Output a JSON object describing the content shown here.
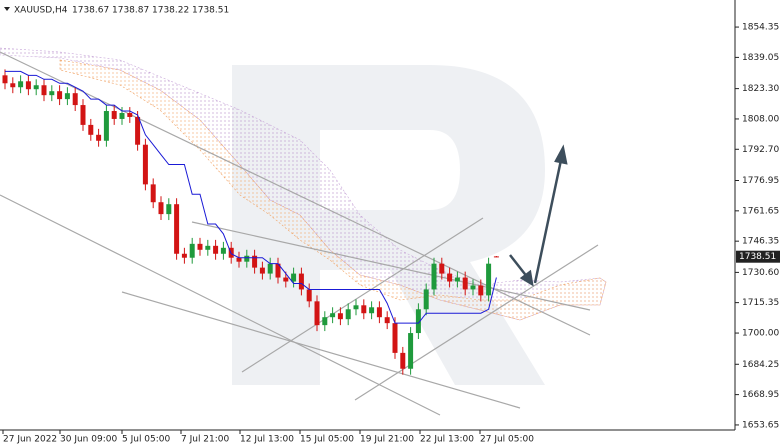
{
  "chart_data": {
    "type": "candlestick",
    "symbol": "XAUUSD,H4",
    "categories": [
      "27 Jun 2022",
      "30 Jun 09:00",
      "5 Jul 05:00",
      "7 Jul 21:00",
      "12 Jul 13:00",
      "15 Jul 05:00",
      "19 Jul 21:00",
      "22 Jul 13:00",
      "27 Jul 05:00"
    ],
    "open": [
      1830,
      1826,
      1824,
      1827,
      1823,
      1825,
      1820,
      1822,
      1818,
      1821,
      1815,
      1805,
      1800,
      1797,
      1812,
      1808,
      1811,
      1809,
      1795,
      1775,
      1766,
      1760,
      1765,
      1740,
      1738,
      1745,
      1742,
      1744,
      1740,
      1743,
      1738,
      1736,
      1739,
      1733,
      1730,
      1735,
      1728,
      1726,
      1730,
      1722,
      1716,
      1704,
      1708,
      1710,
      1707,
      1712,
      1714,
      1710,
      1713,
      1708,
      1705,
      1690,
      1682,
      1700,
      1712,
      1722,
      1735,
      1730,
      1726,
      1728,
      1722,
      1724,
      1719,
      1738.67
    ],
    "high": [
      1833,
      1829,
      1830,
      1830,
      1828,
      1828,
      1825,
      1825,
      1824,
      1824,
      1818,
      1808,
      1803,
      1815,
      1815,
      1814,
      1814,
      1812,
      1798,
      1778,
      1769,
      1768,
      1768,
      1743,
      1748,
      1748,
      1747,
      1747,
      1746,
      1746,
      1741,
      1742,
      1742,
      1736,
      1738,
      1738,
      1731,
      1733,
      1733,
      1725,
      1719,
      1711,
      1713,
      1713,
      1715,
      1717,
      1717,
      1716,
      1716,
      1711,
      1708,
      1693,
      1703,
      1715,
      1725,
      1738,
      1738,
      1733,
      1731,
      1731,
      1727,
      1727,
      1738,
      1738.87
    ],
    "low": [
      1823,
      1821,
      1821,
      1820,
      1820,
      1817,
      1817,
      1815,
      1815,
      1812,
      1802,
      1797,
      1794,
      1794,
      1805,
      1805,
      1806,
      1792,
      1772,
      1763,
      1757,
      1757,
      1737,
      1735,
      1735,
      1739,
      1739,
      1737,
      1737,
      1735,
      1733,
      1733,
      1730,
      1727,
      1727,
      1725,
      1723,
      1723,
      1719,
      1713,
      1701,
      1701,
      1705,
      1704,
      1704,
      1709,
      1707,
      1707,
      1705,
      1702,
      1687,
      1679,
      1679,
      1697,
      1709,
      1719,
      1727,
      1723,
      1723,
      1719,
      1719,
      1716,
      1716,
      1738.22
    ],
    "close": [
      1826,
      1824,
      1827,
      1823,
      1825,
      1820,
      1822,
      1818,
      1821,
      1815,
      1805,
      1800,
      1797,
      1812,
      1808,
      1811,
      1809,
      1795,
      1775,
      1766,
      1760,
      1765,
      1740,
      1738,
      1745,
      1742,
      1744,
      1740,
      1743,
      1738,
      1736,
      1739,
      1733,
      1730,
      1735,
      1728,
      1726,
      1730,
      1722,
      1716,
      1704,
      1708,
      1710,
      1707,
      1712,
      1714,
      1710,
      1713,
      1708,
      1705,
      1690,
      1682,
      1700,
      1712,
      1722,
      1735,
      1730,
      1726,
      1728,
      1722,
      1724,
      1719,
      1735,
      1738.51
    ],
    "kijun": [
      1832,
      1832,
      1832,
      1830,
      1830,
      1828,
      1828,
      1826,
      1826,
      1824,
      1822,
      1818,
      1818,
      1815,
      1815,
      1812,
      1812,
      1810,
      1800,
      1795,
      1790,
      1785,
      1785,
      1785,
      1770,
      1770,
      1755,
      1755,
      1750,
      1740,
      1738,
      1738,
      1738,
      1738,
      1735,
      1735,
      1730,
      1725,
      1725,
      1722,
      1722,
      1722,
      1722,
      1722,
      1722,
      1722,
      1722,
      1722,
      1722,
      1715,
      1705,
      1705,
      1705,
      1705,
      1710,
      1710,
      1710,
      1710,
      1710,
      1710,
      1710,
      1710,
      1712,
      1728
    ],
    "bull_color": "#1f9a3c",
    "bear_color": "#d21414",
    "kijun_color": "#1a1ad6",
    "ylim": [
      1651.1,
      1868.0
    ],
    "yticks": [
      1854.35,
      1839.05,
      {
        "value": 1823.3,
        "label": "1823.30"
      },
      {
        "value": 1808,
        "label": "1808.00"
      },
      {
        "value": 1792.7,
        "label": "1792.70"
      },
      1776.95,
      1761.65,
      1746.35,
      {
        "value": 1730.6,
        "label": "1730.60"
      },
      1715.35,
      {
        "value": 1700,
        "label": "1700.00"
      },
      1684.25,
      1668.95,
      1653.65
    ]
  }
}
